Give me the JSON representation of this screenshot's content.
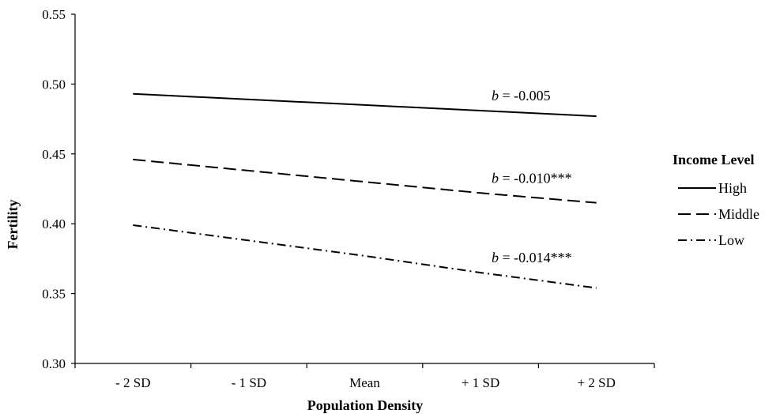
{
  "chart_data": {
    "type": "line",
    "title": "",
    "xlabel": "Population Density",
    "ylabel": "Fertility",
    "categories": [
      "- 2 SD",
      "- 1 SD",
      "Mean",
      "+ 1 SD",
      "+ 2 SD"
    ],
    "ylim": [
      0.3,
      0.55
    ],
    "yticks": [
      "0.30",
      "0.35",
      "0.40",
      "0.45",
      "0.50",
      "0.55"
    ],
    "grid": false,
    "legend": {
      "title": "Income Level",
      "position": "right"
    },
    "series": [
      {
        "name": "High",
        "style": "solid",
        "values": [
          0.493,
          0.489,
          0.485,
          0.481,
          0.477
        ],
        "annotation": {
          "prefix": "b",
          "text": " = -0.005"
        }
      },
      {
        "name": "Middle",
        "style": "dashed",
        "values": [
          0.446,
          0.438,
          0.43,
          0.422,
          0.415
        ],
        "annotation": {
          "prefix": "b",
          "text": " = -0.010***"
        }
      },
      {
        "name": "Low",
        "style": "dashdot",
        "values": [
          0.399,
          0.388,
          0.377,
          0.365,
          0.354
        ],
        "annotation": {
          "prefix": "b",
          "text": " = -0.014***"
        }
      }
    ],
    "colors": {
      "line": "#000000",
      "axis": "#000000",
      "background": "#ffffff"
    }
  }
}
